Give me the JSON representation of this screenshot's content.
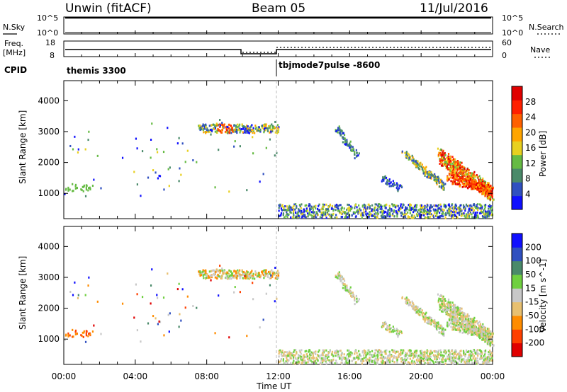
{
  "header": {
    "title": "Unwin (fitACF)",
    "beam": "Beam 05",
    "date": "11/Jul/2016"
  },
  "top_panel": {
    "left_label": "N.Sky",
    "right_label": "N.Search",
    "ticks_left": [
      "10^5",
      "10^0"
    ],
    "ticks_right": [
      "10^5",
      "10^0"
    ]
  },
  "freq_panel": {
    "left_label_1": "Freq.",
    "left_label_2": "[MHz]",
    "right_label": "Nave",
    "ticks_left": [
      "18",
      "8"
    ],
    "ticks_right": [
      "60",
      "0"
    ]
  },
  "cpid": {
    "label": "CPID",
    "segments": [
      "themis 3300",
      "tbjmode7pulse -8600"
    ]
  },
  "colors": {
    "power": [
      "#1010ff",
      "#3050c0",
      "#4a8a6a",
      "#66bb44",
      "#e8d020",
      "#ffa500",
      "#ff6000",
      "#ff2000",
      "#e00000"
    ],
    "velocity": [
      "#e00000",
      "#ff4000",
      "#ff8c00",
      "#e8c070",
      "#c8c8c8",
      "#70d040",
      "#4a8a6a",
      "#3050c0",
      "#1010ff"
    ]
  },
  "chart_data": [
    {
      "type": "heatmap",
      "name": "power",
      "title": "",
      "xlabel": "",
      "ylabel": "Slant Range [km]",
      "x_ticks": [
        "00:00",
        "04:00",
        "08:00",
        "12:00",
        "16:00",
        "20:00",
        "00:00"
      ],
      "xlim_hours": [
        0,
        24
      ],
      "ylim": [
        180,
        4650
      ],
      "y_ticks": [
        1000,
        2000,
        3000,
        4000
      ],
      "colorbar": {
        "label": "Power [dB]",
        "ticks": [
          4,
          8,
          12,
          16,
          20,
          24,
          28
        ],
        "range": [
          0,
          32
        ]
      }
    },
    {
      "type": "heatmap",
      "name": "velocity",
      "title": "",
      "xlabel": "Time UT",
      "ylabel": "Slant Range [km]",
      "x_ticks": [
        "00:00",
        "04:00",
        "08:00",
        "12:00",
        "16:00",
        "20:00",
        "00:00"
      ],
      "xlim_hours": [
        0,
        24
      ],
      "ylim": [
        180,
        4650
      ],
      "y_ticks": [
        1000,
        2000,
        3000,
        4000
      ],
      "colorbar": {
        "label": "Velocity [m s^-1]",
        "ticks": [
          -200,
          -100,
          -50,
          -15,
          15,
          50,
          100,
          200
        ]
      }
    }
  ]
}
